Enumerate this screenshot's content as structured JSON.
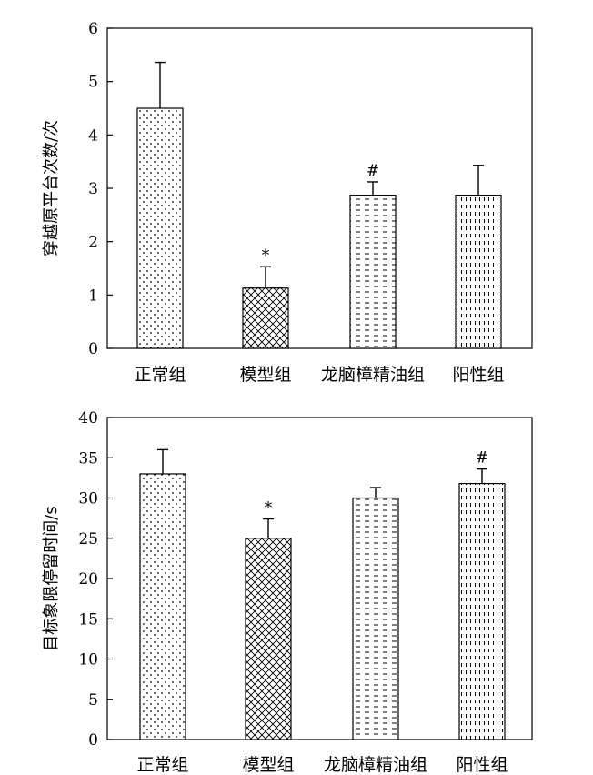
{
  "chart_data": [
    {
      "type": "bar",
      "categories": [
        "正常组",
        "模型组",
        "龙脑樟精油组",
        "阳性组"
      ],
      "values": [
        4.5,
        1.13,
        2.87,
        2.87
      ],
      "errors": [
        0.86,
        0.4,
        0.25,
        0.56
      ],
      "annotations": [
        "",
        "*",
        "#",
        ""
      ],
      "patterns": [
        "dots",
        "crosshatch",
        "dashes",
        "vdashes"
      ],
      "ylabel": "穿越原平台次数/次",
      "ylim": [
        0,
        6
      ],
      "yticks": [
        0,
        1,
        2,
        3,
        4,
        5,
        6
      ]
    },
    {
      "type": "bar",
      "categories": [
        "正常组",
        "模型组",
        "龙脑樟精油组",
        "阳性组"
      ],
      "values": [
        33.0,
        25.0,
        30.0,
        31.8
      ],
      "errors": [
        3.0,
        2.4,
        1.3,
        1.8
      ],
      "annotations": [
        "",
        "*",
        "",
        "#"
      ],
      "patterns": [
        "dots",
        "crosshatch",
        "dashes",
        "vdashes"
      ],
      "ylabel": "目标象限停留时间/s",
      "ylim": [
        0,
        40
      ],
      "yticks": [
        0,
        5,
        10,
        15,
        20,
        25,
        30,
        35,
        40
      ]
    }
  ]
}
